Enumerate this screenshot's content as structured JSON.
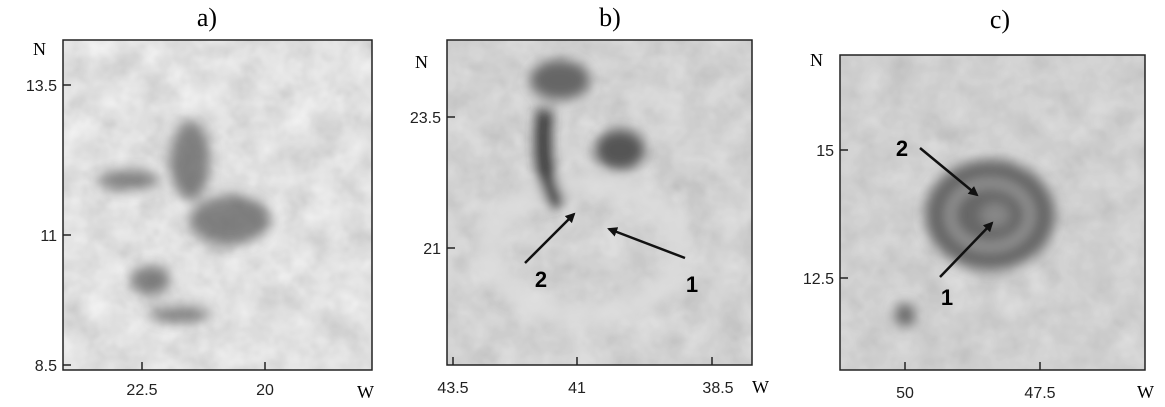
{
  "panels": [
    {
      "label": "a)",
      "y_axis": "N",
      "x_axis": "W",
      "yticks": [
        "13.5",
        "11",
        "8.5"
      ],
      "xticks": [
        "22.5",
        "20"
      ]
    },
    {
      "label": "b)",
      "y_axis": "N",
      "x_axis": "W",
      "yticks": [
        "23.5",
        "21"
      ],
      "xticks": [
        "43.5",
        "41",
        "38.5"
      ],
      "annotations": [
        "2",
        "1"
      ]
    },
    {
      "label": "c)",
      "y_axis": "N",
      "x_axis": "W",
      "yticks": [
        "15",
        "12.5"
      ],
      "xticks": [
        "50",
        "47.5"
      ],
      "annotations": [
        "2",
        "1"
      ]
    }
  ]
}
